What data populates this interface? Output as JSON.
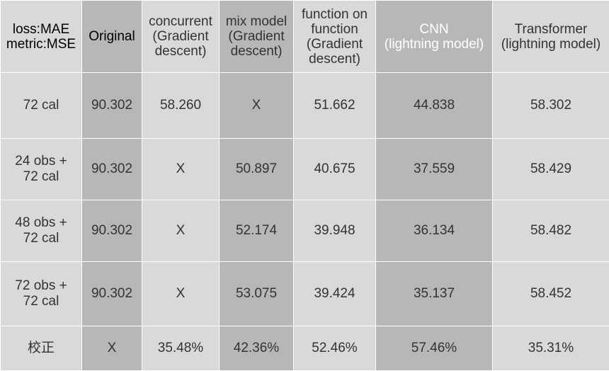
{
  "table": {
    "header": {
      "corner": [
        "loss:MAE",
        "metric:MSE"
      ],
      "columns": [
        [
          "Original"
        ],
        [
          "concurrent",
          "(Gradient",
          "descent)"
        ],
        [
          "mix model",
          "(Gradient",
          "descent)"
        ],
        [
          "function on",
          "function",
          "(Gradient",
          "descent)"
        ],
        [
          "CNN",
          "(lightning model)"
        ],
        [
          "Transformer",
          "(lightning model)"
        ]
      ]
    },
    "rows": [
      {
        "label": [
          "72 cal"
        ],
        "cells": [
          "90.302",
          "58.260",
          "X",
          "51.662",
          "44.838",
          "58.302"
        ]
      },
      {
        "label": [
          "24 obs +",
          "72 cal"
        ],
        "cells": [
          "90.302",
          "X",
          "50.897",
          "40.675",
          "37.559",
          "58.429"
        ]
      },
      {
        "label": [
          "48 obs +",
          "72 cal"
        ],
        "cells": [
          "90.302",
          "X",
          "52.174",
          "39.948",
          "36.134",
          "58.482"
        ]
      },
      {
        "label": [
          "72 obs +",
          "72 cal"
        ],
        "cells": [
          "90.302",
          "X",
          "53.075",
          "39.424",
          "35.137",
          "58.452"
        ]
      },
      {
        "label": [
          "校正"
        ],
        "cells": [
          "X",
          "35.48%",
          "42.36%",
          "52.46%",
          "57.46%",
          "35.31%"
        ]
      }
    ]
  },
  "colors": {
    "light_cell": "#d9d9d9",
    "dark_cell": "#b7b7b7",
    "border": "#ffffff"
  }
}
